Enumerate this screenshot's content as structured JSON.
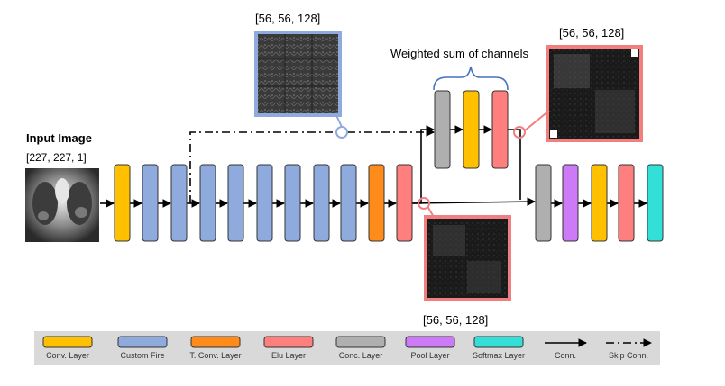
{
  "input": {
    "title": "Input Image",
    "shape": "[227, 227, 1]"
  },
  "feature_maps": {
    "top": "[56, 56, 128]",
    "right": "[56, 56, 128]",
    "bottom": "[56, 56, 128]"
  },
  "weighted_sum_label": "Weighted sum of channels",
  "main_path": [
    "conv",
    "fire",
    "fire",
    "fire",
    "fire",
    "fire",
    "fire",
    "fire",
    "fire",
    "tconv",
    "elu"
  ],
  "branch_path": [
    "conc",
    "conv",
    "elu"
  ],
  "output_path": [
    "conc",
    "pool",
    "conv",
    "elu",
    "softmax"
  ],
  "colors": {
    "conv": "#FFC000",
    "fire": "#8FAADC",
    "tconv": "#FF8C1A",
    "elu": "#FF7F7F",
    "conc": "#AFAFAF",
    "pool": "#CC7AF5",
    "softmax": "#33E0D8",
    "highlight_blue": "#8FAADC",
    "highlight_red": "#F08080",
    "brace": "#4472C4",
    "legend_bg": "#D9D9D9"
  },
  "legend": {
    "conv": "Conv. Layer",
    "fire": "Custom Fire",
    "tconv": "T. Conv. Layer",
    "elu": "Elu  Layer",
    "conc": "Conc. Layer",
    "pool": "Pool Layer",
    "softmax": "Softmax Layer",
    "conn": "Conn.",
    "skip": "Skip Conn."
  }
}
